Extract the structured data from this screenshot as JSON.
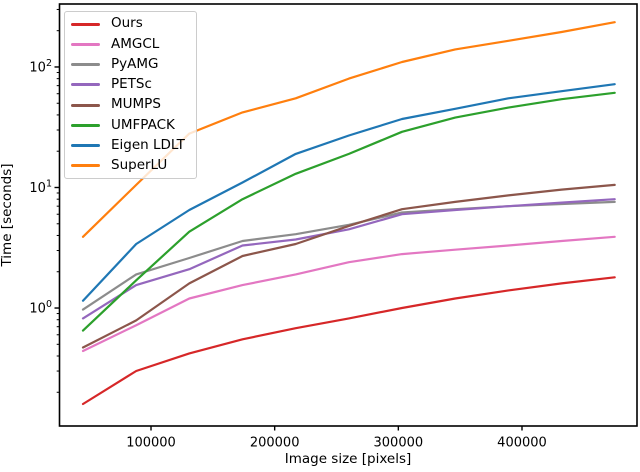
{
  "chart_data": {
    "type": "line",
    "title": "",
    "xlabel": "Image size [pixels]",
    "ylabel": "Time [seconds]",
    "x_scale": "linear",
    "y_scale": "log",
    "xlim": [
      26000,
      493000
    ],
    "ylim": [
      0.105,
      333
    ],
    "grid": false,
    "legend_position": "upper left",
    "x_ticks": [
      {
        "value": 100000,
        "label": "100000"
      },
      {
        "value": 200000,
        "label": "200000"
      },
      {
        "value": 300000,
        "label": "300000"
      },
      {
        "value": 400000,
        "label": "400000"
      }
    ],
    "y_ticks": [
      {
        "value": 1,
        "base": "10",
        "exponent": "0"
      },
      {
        "value": 10,
        "base": "10",
        "exponent": "1"
      },
      {
        "value": 100,
        "base": "10",
        "exponent": "2"
      }
    ],
    "x": [
      45000,
      88000,
      131000,
      174000,
      217000,
      260000,
      303000,
      346000,
      389000,
      432000,
      475000
    ],
    "series": [
      {
        "name": "Ours",
        "color": "#d62728",
        "values": [
          0.16,
          0.3,
          0.42,
          0.55,
          0.68,
          0.82,
          1.0,
          1.2,
          1.4,
          1.6,
          1.8
        ]
      },
      {
        "name": "AMGCL",
        "color": "#e377c2",
        "values": [
          0.44,
          0.72,
          1.2,
          1.55,
          1.9,
          2.4,
          2.8,
          3.05,
          3.3,
          3.6,
          3.9
        ]
      },
      {
        "name": "PyAMG",
        "color": "#8c8c8c",
        "values": [
          0.97,
          1.9,
          2.6,
          3.6,
          4.1,
          4.9,
          6.2,
          6.6,
          7.0,
          7.3,
          7.6
        ]
      },
      {
        "name": "PETSc",
        "color": "#9467bd",
        "values": [
          0.82,
          1.55,
          2.1,
          3.3,
          3.7,
          4.5,
          6.0,
          6.5,
          7.0,
          7.5,
          8.0
        ]
      },
      {
        "name": "MUMPS",
        "color": "#8c564b",
        "values": [
          0.47,
          0.79,
          1.6,
          2.7,
          3.4,
          4.8,
          6.6,
          7.6,
          8.6,
          9.6,
          10.5
        ]
      },
      {
        "name": "UMFPACK",
        "color": "#2ca02c",
        "values": [
          0.65,
          1.7,
          4.3,
          8.0,
          13,
          19,
          29,
          38,
          46,
          54,
          61
        ]
      },
      {
        "name": "Eigen LDLT",
        "color": "#1f77b4",
        "values": [
          1.15,
          3.4,
          6.5,
          11,
          19,
          27,
          37,
          45,
          55,
          63,
          72
        ]
      },
      {
        "name": "SuperLU",
        "color": "#ff7f0e",
        "values": [
          3.9,
          10.5,
          28,
          42,
          55,
          80,
          110,
          140,
          165,
          195,
          235
        ]
      }
    ],
    "style": {
      "frame_color": "#000000",
      "tick_color": "#000000",
      "text_color": "#000000",
      "legend_border_color": "#cccccc",
      "background": "#ffffff",
      "line_width": 2.2
    }
  }
}
